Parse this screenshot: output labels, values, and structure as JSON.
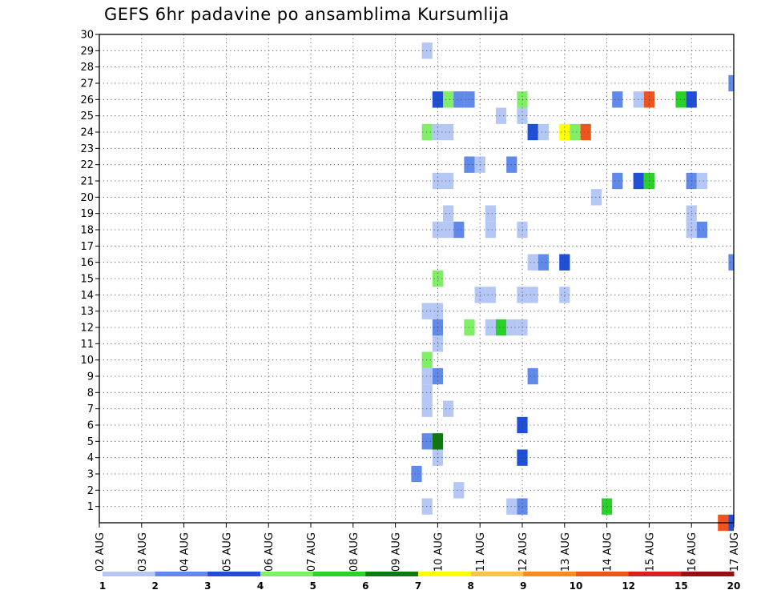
{
  "chart_data": {
    "type": "heatmap",
    "title": "GEFS 6hr padavine po ansamblima Kursumlija",
    "xlabel": "",
    "ylabel": "",
    "x_ticks": [
      "02 AUG",
      "03 AUG",
      "04 AUG",
      "05 AUG",
      "06 AUG",
      "07 AUG",
      "08 AUG",
      "09 AUG",
      "10 AUG",
      "11 AUG",
      "12 AUG",
      "13 AUG",
      "14 AUG",
      "15 AUG",
      "16 AUG",
      "17 AUG"
    ],
    "y_ticks": [
      1,
      2,
      3,
      4,
      5,
      6,
      7,
      8,
      9,
      10,
      11,
      12,
      13,
      14,
      15,
      16,
      17,
      18,
      19,
      20,
      21,
      22,
      23,
      24,
      25,
      26,
      27,
      28,
      29,
      30
    ],
    "xlim": [
      0,
      60
    ],
    "ylim": [
      0,
      30
    ],
    "x_unit_note": "6-hour steps from 02 AUG 00Z",
    "grid": true,
    "colorbar": {
      "labels": [
        "1",
        "2",
        "3",
        "4",
        "5",
        "6",
        "7",
        "8",
        "9",
        "10",
        "12",
        "15",
        "20"
      ],
      "colors": [
        "#b4c7f5",
        "#6189ea",
        "#1f4ed8",
        "#80ee66",
        "#2bd12b",
        "#0e7a0e",
        "#ffff00",
        "#fcc24b",
        "#f98a1e",
        "#f0541c",
        "#d9211b",
        "#9a0f0f"
      ]
    },
    "cells": [
      {
        "member": 1,
        "step": 31,
        "value": 1.5
      },
      {
        "member": 1,
        "step": 39,
        "value": 1.5
      },
      {
        "member": 1,
        "step": 40,
        "value": 2.5
      },
      {
        "member": 1,
        "step": 48,
        "value": 5.5
      },
      {
        "member": 2,
        "step": 34,
        "value": 1.5
      },
      {
        "member": 3,
        "step": 30,
        "value": 2.5
      },
      {
        "member": 4,
        "step": 32,
        "value": 1.5
      },
      {
        "member": 4,
        "step": 40,
        "value": 3.5
      },
      {
        "member": 5,
        "step": 31,
        "value": 2.5
      },
      {
        "member": 5,
        "step": 32,
        "value": 6.5
      },
      {
        "member": 6,
        "step": 40,
        "value": 3.5
      },
      {
        "member": 7,
        "step": 31,
        "value": 1.5
      },
      {
        "member": 7,
        "step": 33,
        "value": 1.5
      },
      {
        "member": 8,
        "step": 31,
        "value": 1.5
      },
      {
        "member": 9,
        "step": 32,
        "value": 2.5
      },
      {
        "member": 9,
        "step": 31,
        "value": 1.5
      },
      {
        "member": 9,
        "step": 41,
        "value": 2.5
      },
      {
        "member": 10,
        "step": 31,
        "value": 4.5
      },
      {
        "member": 11,
        "step": 32,
        "value": 1.5
      },
      {
        "member": 12,
        "step": 32,
        "value": 2.5
      },
      {
        "member": 12,
        "step": 35,
        "value": 4.5
      },
      {
        "member": 12,
        "step": 37,
        "value": 1.5
      },
      {
        "member": 12,
        "step": 38,
        "value": 5.5
      },
      {
        "member": 12,
        "step": 39,
        "value": 1.5
      },
      {
        "member": 12,
        "step": 40,
        "value": 1.5
      },
      {
        "member": 13,
        "step": 31,
        "value": 1.5
      },
      {
        "member": 13,
        "step": 32,
        "value": 1.5
      },
      {
        "member": 14,
        "step": 36,
        "value": 1.5
      },
      {
        "member": 14,
        "step": 37,
        "value": 1.5
      },
      {
        "member": 14,
        "step": 40,
        "value": 1.5
      },
      {
        "member": 14,
        "step": 41,
        "value": 1.5
      },
      {
        "member": 14,
        "step": 44,
        "value": 1.5
      },
      {
        "member": 15,
        "step": 32,
        "value": 4.5
      },
      {
        "member": 16,
        "step": 41,
        "value": 1.5
      },
      {
        "member": 16,
        "step": 42,
        "value": 2.5
      },
      {
        "member": 16,
        "step": 44,
        "value": 3.5
      },
      {
        "member": 16,
        "step": 60,
        "value": 2.5
      },
      {
        "member": 18,
        "step": 32,
        "value": 1.5
      },
      {
        "member": 18,
        "step": 34,
        "value": 2.5
      },
      {
        "member": 18,
        "step": 33,
        "value": 1.5
      },
      {
        "member": 18,
        "step": 37,
        "value": 1.5
      },
      {
        "member": 18,
        "step": 40,
        "value": 1.5
      },
      {
        "member": 18,
        "step": 56,
        "value": 1.5
      },
      {
        "member": 18,
        "step": 57,
        "value": 2.5
      },
      {
        "member": 19,
        "step": 33,
        "value": 1.5
      },
      {
        "member": 19,
        "step": 37,
        "value": 1.5
      },
      {
        "member": 19,
        "step": 56,
        "value": 1.5
      },
      {
        "member": 20,
        "step": 47,
        "value": 1.5
      },
      {
        "member": 21,
        "step": 32,
        "value": 1.5
      },
      {
        "member": 21,
        "step": 33,
        "value": 1.5
      },
      {
        "member": 21,
        "step": 49,
        "value": 2.5
      },
      {
        "member": 21,
        "step": 51,
        "value": 3.5
      },
      {
        "member": 21,
        "step": 52,
        "value": 5.5
      },
      {
        "member": 21,
        "step": 56,
        "value": 2.5
      },
      {
        "member": 21,
        "step": 57,
        "value": 1.5
      },
      {
        "member": 22,
        "step": 35,
        "value": 2.5
      },
      {
        "member": 22,
        "step": 36,
        "value": 1.5
      },
      {
        "member": 22,
        "step": 39,
        "value": 2.5
      },
      {
        "member": 24,
        "step": 31,
        "value": 4.5
      },
      {
        "member": 24,
        "step": 32,
        "value": 1.5
      },
      {
        "member": 24,
        "step": 33,
        "value": 1.5
      },
      {
        "member": 24,
        "step": 41,
        "value": 3.5
      },
      {
        "member": 24,
        "step": 42,
        "value": 1.5
      },
      {
        "member": 24,
        "step": 44,
        "value": 7.5
      },
      {
        "member": 24,
        "step": 45,
        "value": 4.5
      },
      {
        "member": 24,
        "step": 46,
        "value": 10.5
      },
      {
        "member": 25,
        "step": 38,
        "value": 1.5
      },
      {
        "member": 25,
        "step": 40,
        "value": 1.5
      },
      {
        "member": 26,
        "step": 32,
        "value": 3.5
      },
      {
        "member": 26,
        "step": 33,
        "value": 4.5
      },
      {
        "member": 26,
        "step": 34,
        "value": 2.5
      },
      {
        "member": 26,
        "step": 35,
        "value": 2.5
      },
      {
        "member": 26,
        "step": 40,
        "value": 4.5
      },
      {
        "member": 26,
        "step": 49,
        "value": 2.5
      },
      {
        "member": 26,
        "step": 51,
        "value": 1.5
      },
      {
        "member": 26,
        "step": 52,
        "value": 10.5
      },
      {
        "member": 26,
        "step": 55,
        "value": 5.5
      },
      {
        "member": 26,
        "step": 56,
        "value": 3.5
      },
      {
        "member": 27,
        "step": 60,
        "value": 2.5
      },
      {
        "member": 29,
        "step": 31,
        "value": 1.5
      },
      {
        "member": 0,
        "step": 59,
        "value": 10.5
      },
      {
        "member": 0,
        "step": 60,
        "value": 3.5
      }
    ]
  }
}
